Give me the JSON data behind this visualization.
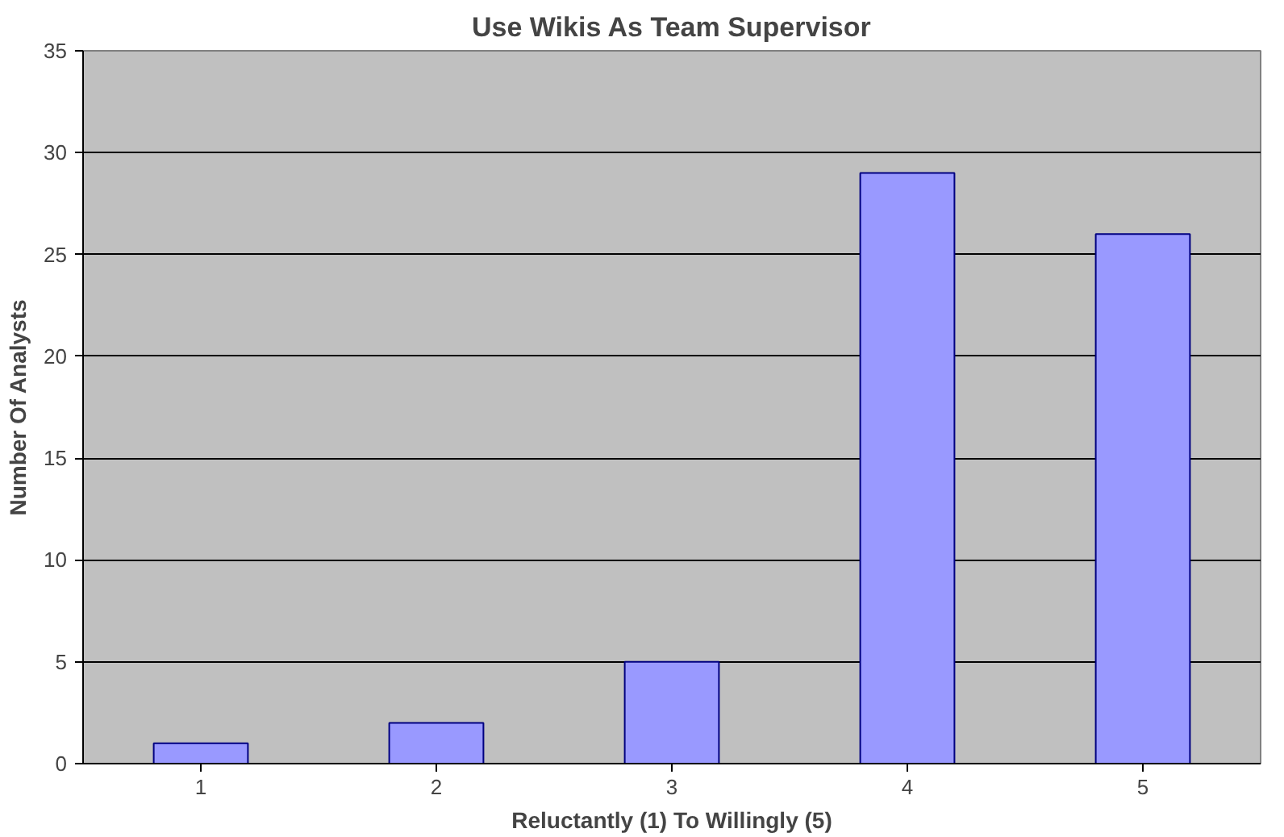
{
  "chart_data": {
    "type": "bar",
    "title": "Use Wikis As Team Supervisor",
    "xlabel": "Reluctantly (1) To Willingly (5)",
    "ylabel": "Number Of Analysts",
    "categories": [
      "1",
      "2",
      "3",
      "4",
      "5"
    ],
    "values": [
      1,
      2,
      5,
      29,
      26
    ],
    "color": "#9999ff",
    "ylim": [
      0,
      35
    ],
    "yticks": [
      0,
      5,
      10,
      15,
      20,
      25,
      30,
      35
    ],
    "grid": "y"
  }
}
